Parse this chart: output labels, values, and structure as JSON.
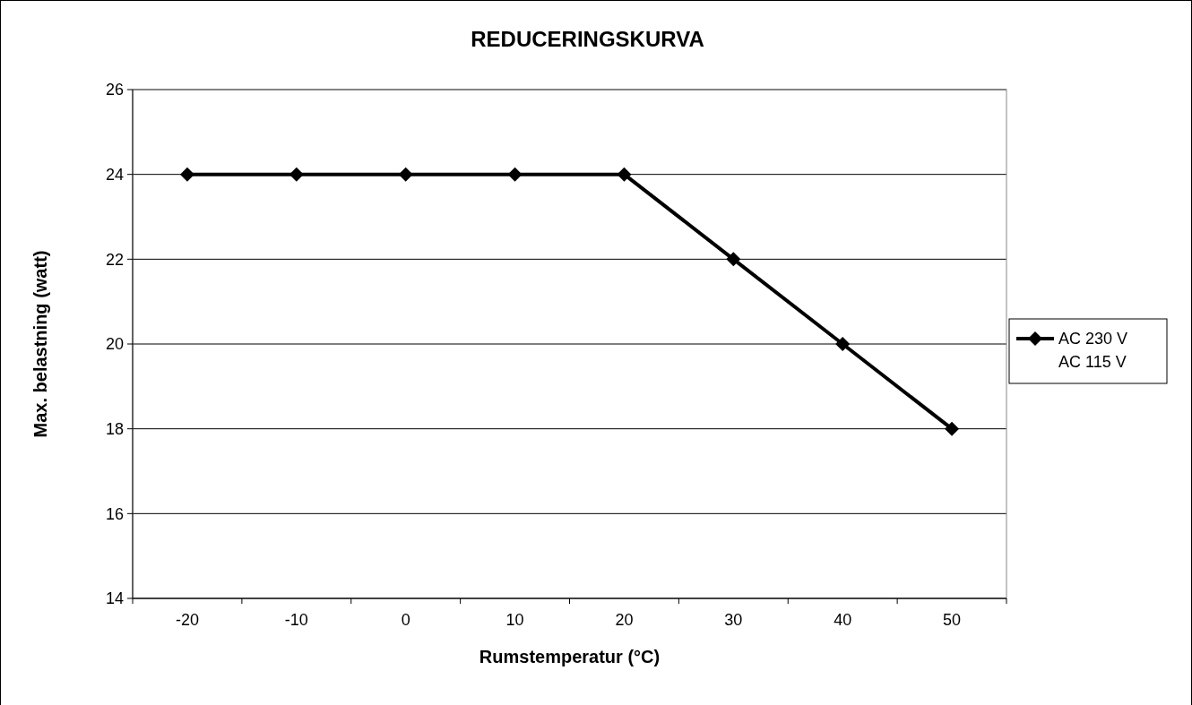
{
  "chart_data": {
    "type": "line",
    "title": "REDUCERINGSKURVA",
    "xlabel": "Rumstemperatur (°C)",
    "ylabel": "Max. belastning (watt)",
    "categories": [
      "-20",
      "-10",
      "0",
      "10",
      "20",
      "30",
      "40",
      "50"
    ],
    "series": [
      {
        "name": "AC 230 V",
        "color": "#000000",
        "values": [
          24,
          24,
          24,
          24,
          24,
          22,
          20,
          18
        ]
      },
      {
        "name": "AC 115 V",
        "values": [
          null,
          null,
          null,
          null,
          null,
          null,
          null,
          null
        ]
      }
    ],
    "ylim": [
      14,
      26
    ],
    "yticks": [
      14,
      16,
      18,
      20,
      22,
      24,
      26
    ],
    "grid": "y",
    "legend": "right",
    "marker": "diamond",
    "line_style": "solid"
  }
}
